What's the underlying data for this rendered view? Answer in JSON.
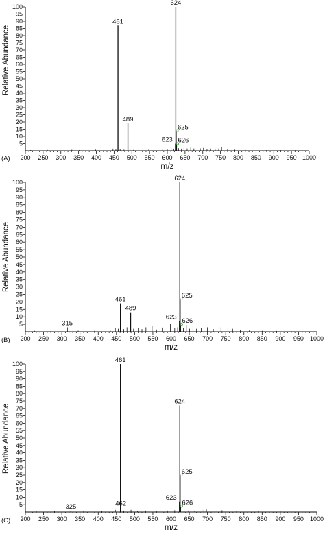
{
  "colors": {
    "axis": "#111111",
    "marker": "#3a9a3a"
  },
  "chart_data": [
    {
      "type": "bar",
      "panel_label": "(A)",
      "xlabel": "m/z",
      "ylabel": "Relative Abundance",
      "xlim": [
        200,
        1000
      ],
      "ylim": [
        0,
        100
      ],
      "x_ticks": [
        200,
        250,
        300,
        350,
        400,
        450,
        500,
        550,
        600,
        650,
        700,
        750,
        800,
        850,
        900,
        950,
        1000
      ],
      "y_ticks": [
        5,
        10,
        15,
        20,
        25,
        30,
        35,
        40,
        45,
        50,
        55,
        60,
        65,
        70,
        75,
        80,
        85,
        90,
        95,
        100
      ],
      "peaks": [
        {
          "mz": 461,
          "intensity": 87,
          "label": "461"
        },
        {
          "mz": 489,
          "intensity": 19,
          "label": "489"
        },
        {
          "mz": 623,
          "intensity": 5,
          "label": "623"
        },
        {
          "mz": 624,
          "intensity": 100,
          "label": "624"
        },
        {
          "mz": 625,
          "intensity": 14,
          "label": "625"
        },
        {
          "mz": 626,
          "intensity": 5,
          "label": "626"
        }
      ],
      "minor_peaks": [
        {
          "mz": 215,
          "intensity": 0.5
        },
        {
          "mz": 262,
          "intensity": 0.6
        },
        {
          "mz": 331,
          "intensity": 0.7
        },
        {
          "mz": 352,
          "intensity": 0.5
        },
        {
          "mz": 398,
          "intensity": 0.8
        },
        {
          "mz": 421,
          "intensity": 0.6
        },
        {
          "mz": 447,
          "intensity": 1.5
        },
        {
          "mz": 455,
          "intensity": 1.0
        },
        {
          "mz": 467,
          "intensity": 1.2
        },
        {
          "mz": 478,
          "intensity": 0.8
        },
        {
          "mz": 495,
          "intensity": 1.2
        },
        {
          "mz": 505,
          "intensity": 0.6
        },
        {
          "mz": 520,
          "intensity": 0.8
        },
        {
          "mz": 548,
          "intensity": 1.0
        },
        {
          "mz": 568,
          "intensity": 0.9
        },
        {
          "mz": 586,
          "intensity": 1.2
        },
        {
          "mz": 600,
          "intensity": 1.3
        },
        {
          "mz": 611,
          "intensity": 1.8
        },
        {
          "mz": 618,
          "intensity": 1.5
        },
        {
          "mz": 632,
          "intensity": 1.8
        },
        {
          "mz": 640,
          "intensity": 1.5
        },
        {
          "mz": 647,
          "intensity": 2.0
        },
        {
          "mz": 656,
          "intensity": 1.6
        },
        {
          "mz": 666,
          "intensity": 2.2
        },
        {
          "mz": 675,
          "intensity": 1.6
        },
        {
          "mz": 684,
          "intensity": 2.4
        },
        {
          "mz": 693,
          "intensity": 1.7
        },
        {
          "mz": 702,
          "intensity": 2.0
        },
        {
          "mz": 712,
          "intensity": 1.4
        },
        {
          "mz": 722,
          "intensity": 1.6
        },
        {
          "mz": 735,
          "intensity": 1.2
        },
        {
          "mz": 745,
          "intensity": 1.6
        },
        {
          "mz": 753,
          "intensity": 2.4
        },
        {
          "mz": 770,
          "intensity": 1.0
        },
        {
          "mz": 790,
          "intensity": 0.8
        },
        {
          "mz": 820,
          "intensity": 0.6
        },
        {
          "mz": 850,
          "intensity": 0.5
        },
        {
          "mz": 880,
          "intensity": 0.5
        },
        {
          "mz": 920,
          "intensity": 0.4
        },
        {
          "mz": 960,
          "intensity": 0.4
        }
      ]
    },
    {
      "type": "bar",
      "panel_label": "(B)",
      "xlabel": "m/z",
      "ylabel": "Relative Abundance",
      "xlim": [
        200,
        1000
      ],
      "ylim": [
        0,
        100
      ],
      "x_ticks": [
        200,
        250,
        300,
        350,
        400,
        450,
        500,
        550,
        600,
        650,
        700,
        750,
        800,
        850,
        900,
        950,
        1000
      ],
      "y_ticks": [
        5,
        10,
        15,
        20,
        25,
        30,
        35,
        40,
        45,
        50,
        55,
        60,
        65,
        70,
        75,
        80,
        85,
        90,
        95,
        100
      ],
      "peaks": [
        {
          "mz": 315,
          "intensity": 3,
          "label": "315"
        },
        {
          "mz": 461,
          "intensity": 19,
          "label": "461"
        },
        {
          "mz": 489,
          "intensity": 13,
          "label": "489"
        },
        {
          "mz": 623,
          "intensity": 7,
          "label": "623"
        },
        {
          "mz": 624,
          "intensity": 100,
          "label": "624"
        },
        {
          "mz": 625,
          "intensity": 22,
          "label": "625"
        },
        {
          "mz": 626,
          "intensity": 5,
          "label": "626"
        }
      ],
      "minor_peaks": [
        {
          "mz": 225,
          "intensity": 0.6
        },
        {
          "mz": 270,
          "intensity": 0.5
        },
        {
          "mz": 345,
          "intensity": 0.7
        },
        {
          "mz": 390,
          "intensity": 0.6
        },
        {
          "mz": 433,
          "intensity": 1.2
        },
        {
          "mz": 447,
          "intensity": 2.5
        },
        {
          "mz": 455,
          "intensity": 2.0
        },
        {
          "mz": 470,
          "intensity": 1.8
        },
        {
          "mz": 479,
          "intensity": 3.0
        },
        {
          "mz": 497,
          "intensity": 2.0
        },
        {
          "mz": 510,
          "intensity": 2.5
        },
        {
          "mz": 520,
          "intensity": 1.8
        },
        {
          "mz": 531,
          "intensity": 3.0
        },
        {
          "mz": 548,
          "intensity": 4.0
        },
        {
          "mz": 560,
          "intensity": 1.5
        },
        {
          "mz": 577,
          "intensity": 2.8
        },
        {
          "mz": 598,
          "intensity": 5.5
        },
        {
          "mz": 610,
          "intensity": 2.5
        },
        {
          "mz": 618,
          "intensity": 3.0
        },
        {
          "mz": 634,
          "intensity": 2.5
        },
        {
          "mz": 642,
          "intensity": 4.5
        },
        {
          "mz": 651,
          "intensity": 2.0
        },
        {
          "mz": 660,
          "intensity": 4.0
        },
        {
          "mz": 670,
          "intensity": 2.0
        },
        {
          "mz": 683,
          "intensity": 2.5
        },
        {
          "mz": 700,
          "intensity": 3.0
        },
        {
          "mz": 716,
          "intensity": 1.8
        },
        {
          "mz": 737,
          "intensity": 3.0
        },
        {
          "mz": 756,
          "intensity": 2.4
        },
        {
          "mz": 769,
          "intensity": 2.0
        },
        {
          "mz": 790,
          "intensity": 1.2
        },
        {
          "mz": 815,
          "intensity": 0.8
        },
        {
          "mz": 850,
          "intensity": 0.6
        },
        {
          "mz": 890,
          "intensity": 0.5
        },
        {
          "mz": 930,
          "intensity": 0.4
        }
      ]
    },
    {
      "type": "bar",
      "panel_label": "(C)",
      "xlabel": "m/z",
      "ylabel": "Relative Abundance",
      "xlim": [
        200,
        1000
      ],
      "ylim": [
        0,
        100
      ],
      "x_ticks": [
        200,
        250,
        300,
        350,
        400,
        450,
        500,
        550,
        600,
        650,
        700,
        750,
        800,
        850,
        900,
        950,
        1000
      ],
      "y_ticks": [
        5,
        10,
        15,
        20,
        25,
        30,
        35,
        40,
        45,
        50,
        55,
        60,
        65,
        70,
        75,
        80,
        85,
        90,
        95,
        100
      ],
      "peaks": [
        {
          "mz": 325,
          "intensity": 1,
          "label": "325"
        },
        {
          "mz": 461,
          "intensity": 100,
          "label": "461"
        },
        {
          "mz": 462,
          "intensity": 3,
          "label": "462"
        },
        {
          "mz": 623,
          "intensity": 7,
          "label": "623"
        },
        {
          "mz": 624,
          "intensity": 72,
          "label": "624"
        },
        {
          "mz": 625,
          "intensity": 25,
          "label": "625"
        },
        {
          "mz": 626,
          "intensity": 4,
          "label": "626"
        }
      ],
      "minor_peaks": [
        {
          "mz": 230,
          "intensity": 0.5
        },
        {
          "mz": 280,
          "intensity": 0.5
        },
        {
          "mz": 360,
          "intensity": 0.6
        },
        {
          "mz": 410,
          "intensity": 0.7
        },
        {
          "mz": 447,
          "intensity": 1.5
        },
        {
          "mz": 470,
          "intensity": 1.0
        },
        {
          "mz": 490,
          "intensity": 1.5
        },
        {
          "mz": 508,
          "intensity": 0.8
        },
        {
          "mz": 530,
          "intensity": 1.0
        },
        {
          "mz": 560,
          "intensity": 0.8
        },
        {
          "mz": 590,
          "intensity": 1.0
        },
        {
          "mz": 610,
          "intensity": 1.2
        },
        {
          "mz": 636,
          "intensity": 1.2
        },
        {
          "mz": 648,
          "intensity": 1.0
        },
        {
          "mz": 665,
          "intensity": 1.0
        },
        {
          "mz": 685,
          "intensity": 1.8
        },
        {
          "mz": 690,
          "intensity": 1.5
        },
        {
          "mz": 697,
          "intensity": 1.8
        },
        {
          "mz": 715,
          "intensity": 1.0
        },
        {
          "mz": 740,
          "intensity": 1.2
        },
        {
          "mz": 780,
          "intensity": 0.6
        },
        {
          "mz": 840,
          "intensity": 0.5
        },
        {
          "mz": 900,
          "intensity": 0.4
        }
      ]
    }
  ]
}
